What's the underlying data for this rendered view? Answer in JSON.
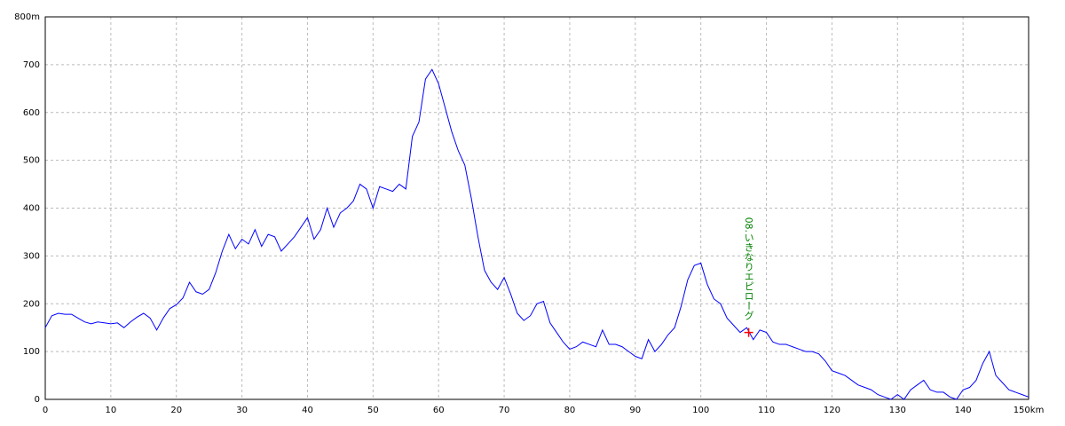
{
  "chart_data": {
    "type": "line",
    "x": [
      0,
      1,
      2,
      3,
      4,
      5,
      6,
      7,
      8,
      9,
      10,
      11,
      12,
      13,
      14,
      15,
      16,
      17,
      18,
      19,
      20,
      21,
      22,
      23,
      24,
      25,
      26,
      27,
      28,
      29,
      30,
      31,
      32,
      33,
      34,
      35,
      36,
      37,
      38,
      39,
      40,
      41,
      42,
      43,
      44,
      45,
      46,
      47,
      48,
      49,
      50,
      51,
      52,
      53,
      54,
      55,
      56,
      57,
      58,
      59,
      60,
      61,
      62,
      63,
      64,
      65,
      66,
      67,
      68,
      69,
      70,
      71,
      72,
      73,
      74,
      75,
      76,
      77,
      78,
      79,
      80,
      81,
      82,
      83,
      84,
      85,
      86,
      87,
      88,
      89,
      90,
      91,
      92,
      93,
      94,
      95,
      96,
      97,
      98,
      99,
      100,
      101,
      102,
      103,
      104,
      105,
      106,
      107,
      108,
      109,
      110,
      111,
      112,
      113,
      114,
      115,
      116,
      117,
      118,
      119,
      120,
      121,
      122,
      123,
      124,
      125,
      126,
      127,
      128,
      129,
      130,
      131,
      132,
      133,
      134,
      135,
      136,
      137,
      138,
      139,
      140,
      141,
      142,
      143,
      144,
      145,
      146,
      147,
      148,
      149,
      150
    ],
    "values": [
      150,
      175,
      180,
      178,
      178,
      170,
      162,
      158,
      162,
      160,
      158,
      160,
      150,
      162,
      172,
      180,
      170,
      145,
      170,
      190,
      198,
      212,
      245,
      225,
      220,
      230,
      265,
      310,
      345,
      315,
      335,
      325,
      355,
      320,
      345,
      340,
      310,
      325,
      340,
      360,
      380,
      335,
      355,
      400,
      360,
      390,
      400,
      415,
      450,
      440,
      400,
      445,
      440,
      435,
      450,
      440,
      550,
      580,
      670,
      690,
      660,
      610,
      560,
      520,
      490,
      420,
      340,
      270,
      245,
      230,
      255,
      220,
      180,
      165,
      175,
      200,
      205,
      160,
      140,
      120,
      105,
      110,
      120,
      115,
      110,
      145,
      115,
      115,
      110,
      100,
      90,
      85,
      125,
      100,
      115,
      135,
      150,
      195,
      250,
      280,
      285,
      240,
      210,
      200,
      170,
      155,
      140,
      150,
      125,
      145,
      140,
      120,
      115,
      115,
      110,
      105,
      100,
      100,
      95,
      80,
      60,
      55,
      50,
      40,
      30,
      25,
      20,
      10,
      5,
      0,
      10,
      0,
      20,
      30,
      40,
      20,
      15,
      15,
      5,
      0,
      20,
      25,
      40,
      75,
      100,
      50,
      35,
      20,
      15,
      10,
      5
    ],
    "color": "#0000ff",
    "xlim": [
      0,
      150
    ],
    "xticks": [
      0,
      10,
      20,
      30,
      40,
      50,
      60,
      70,
      80,
      90,
      100,
      110,
      120,
      130,
      140,
      {
        "value": 150,
        "label": "150km"
      }
    ],
    "ylim": [
      0,
      800
    ],
    "yticks": [
      0,
      100,
      200,
      300,
      400,
      500,
      600,
      700,
      {
        "value": 800,
        "label": "800m"
      }
    ],
    "grid": true,
    "annotations": [
      {
        "text": "08.いきなりエピローグ",
        "x": 107.3,
        "y": 140,
        "color": "#008000",
        "marker_color": "#ff0000"
      }
    ]
  }
}
